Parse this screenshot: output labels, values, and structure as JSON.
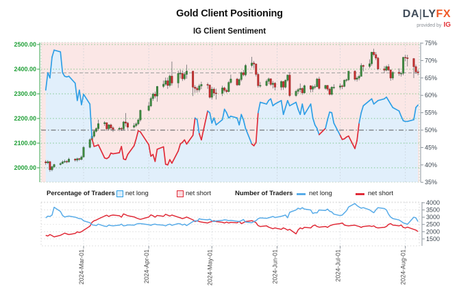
{
  "header": {
    "title": "Gold Client Positioning",
    "subtitle": "IG Client Sentiment",
    "logo": {
      "brand_a": "DA",
      "brand_bar": "|",
      "brand_b": "LY",
      "brand_fx": "FX",
      "provided_by": "provided by",
      "provider": "IG"
    }
  },
  "legend": {
    "pct_title": "Percentage of Traders",
    "num_title": "Number of Traders",
    "pct_net_long_label": "net long",
    "pct_net_short_label": "net short",
    "num_net_long_label": "net long",
    "num_net_short_label": "net short"
  },
  "colors": {
    "long_line": "#2e9fe6",
    "short_line": "#e02b38",
    "long_fill": "#e1effb",
    "short_fill": "#fbe7e6",
    "candle_up": "#3d8b40",
    "candle_down": "#c62f2f",
    "price_axis_green": "#21a038",
    "grid_green": "#5bbb6a",
    "pct_axis_gray": "#3c4650",
    "midline_gray": "#555555",
    "last_price_gray": "#9a9a9a",
    "num_long": "#57abe8",
    "num_short": "#e02b38"
  },
  "chart_data": {
    "type": "mixed",
    "panels": [
      {
        "type": "candlestick+line",
        "title": "Gold price (candles, left axis) with IG client sentiment % net long (line, right axis)",
        "price_ticks": [
          "2500.00",
          "2400.00",
          "2300.00",
          "2200.00",
          "2100.00",
          "2000.00"
        ],
        "price_tick_values": [
          2500,
          2400,
          2300,
          2200,
          2100,
          2000
        ],
        "pct_ticks": [
          "75%",
          "70%",
          "65%",
          "60%",
          "55%",
          "50%",
          "45%",
          "40%",
          "35%"
        ],
        "pct_tick_values": [
          75,
          70,
          65,
          60,
          55,
          50,
          45,
          40,
          35
        ],
        "pct_midline": 50,
        "last_price_line": 2385,
        "grid": true,
        "legend_position": "below"
      },
      {
        "type": "line",
        "title": "Number of traders",
        "count_ticks": [
          "4000",
          "3500",
          "3000",
          "2500",
          "2000",
          "1500"
        ],
        "count_tick_values": [
          4000,
          3500,
          3000,
          2500,
          2000,
          1500
        ],
        "grid": true
      }
    ],
    "x_tick_labels": [
      "2024-Mar-01",
      "2024-Apr-01",
      "2024-May-01",
      "2024-Jun-01",
      "2024-Jul-01",
      "2024-Aug-01"
    ],
    "x_tick_dates": [
      "2024-03-01",
      "2024-04-01",
      "2024-05-01",
      "2024-06-01",
      "2024-07-01",
      "2024-08-01"
    ],
    "dates": [
      "2024-02-12",
      "2024-02-13",
      "2024-02-14",
      "2024-02-15",
      "2024-02-16",
      "2024-02-19",
      "2024-02-20",
      "2024-02-21",
      "2024-02-22",
      "2024-02-23",
      "2024-02-26",
      "2024-02-27",
      "2024-02-28",
      "2024-02-29",
      "2024-03-01",
      "2024-03-04",
      "2024-03-05",
      "2024-03-06",
      "2024-03-07",
      "2024-03-08",
      "2024-03-11",
      "2024-03-12",
      "2024-03-13",
      "2024-03-14",
      "2024-03-15",
      "2024-03-18",
      "2024-03-19",
      "2024-03-20",
      "2024-03-21",
      "2024-03-22",
      "2024-03-25",
      "2024-03-26",
      "2024-03-27",
      "2024-03-28",
      "2024-04-01",
      "2024-04-02",
      "2024-04-03",
      "2024-04-04",
      "2024-04-05",
      "2024-04-08",
      "2024-04-09",
      "2024-04-10",
      "2024-04-11",
      "2024-04-12",
      "2024-04-15",
      "2024-04-16",
      "2024-04-17",
      "2024-04-18",
      "2024-04-19",
      "2024-04-22",
      "2024-04-23",
      "2024-04-24",
      "2024-04-25",
      "2024-04-26",
      "2024-04-29",
      "2024-04-30",
      "2024-05-01",
      "2024-05-02",
      "2024-05-03",
      "2024-05-06",
      "2024-05-07",
      "2024-05-08",
      "2024-05-09",
      "2024-05-10",
      "2024-05-13",
      "2024-05-14",
      "2024-05-15",
      "2024-05-16",
      "2024-05-17",
      "2024-05-20",
      "2024-05-21",
      "2024-05-22",
      "2024-05-23",
      "2024-05-24",
      "2024-05-27",
      "2024-05-28",
      "2024-05-29",
      "2024-05-30",
      "2024-05-31",
      "2024-06-03",
      "2024-06-04",
      "2024-06-05",
      "2024-06-06",
      "2024-06-07",
      "2024-06-10",
      "2024-06-11",
      "2024-06-12",
      "2024-06-13",
      "2024-06-14",
      "2024-06-17",
      "2024-06-18",
      "2024-06-19",
      "2024-06-20",
      "2024-06-21",
      "2024-06-24",
      "2024-06-25",
      "2024-06-26",
      "2024-06-27",
      "2024-06-28",
      "2024-07-01",
      "2024-07-02",
      "2024-07-03",
      "2024-07-04",
      "2024-07-05",
      "2024-07-08",
      "2024-07-09",
      "2024-07-10",
      "2024-07-11",
      "2024-07-12",
      "2024-07-15",
      "2024-07-16",
      "2024-07-17",
      "2024-07-18",
      "2024-07-19",
      "2024-07-22",
      "2024-07-23",
      "2024-07-24",
      "2024-07-25",
      "2024-07-26",
      "2024-07-29",
      "2024-07-30",
      "2024-07-31",
      "2024-08-01",
      "2024-08-02",
      "2024-08-05",
      "2024-08-06",
      "2024-08-07"
    ],
    "candles_ohlc": [
      [
        2024,
        2031,
        2012,
        2020
      ],
      [
        2020,
        2031,
        2015,
        2025
      ],
      [
        2025,
        2027,
        1984,
        1992
      ],
      [
        1992,
        2008,
        1986,
        2004
      ],
      [
        2004,
        2017,
        2000,
        2013
      ],
      [
        2013,
        2022,
        2010,
        2017
      ],
      [
        2017,
        2030,
        2015,
        2024
      ],
      [
        2024,
        2033,
        2019,
        2026
      ],
      [
        2026,
        2031,
        2018,
        2024
      ],
      [
        2024,
        2041,
        2021,
        2035
      ],
      [
        2035,
        2039,
        2025,
        2031
      ],
      [
        2031,
        2041,
        2024,
        2037
      ],
      [
        2037,
        2040,
        2028,
        2034
      ],
      [
        2034,
        2050,
        2030,
        2044
      ],
      [
        2044,
        2088,
        2042,
        2083
      ],
      [
        2083,
        2119,
        2079,
        2114
      ],
      [
        2114,
        2141,
        2110,
        2128
      ],
      [
        2128,
        2152,
        2123,
        2148
      ],
      [
        2148,
        2164,
        2143,
        2159
      ],
      [
        2159,
        2195,
        2154,
        2179
      ],
      [
        2179,
        2189,
        2170,
        2183
      ],
      [
        2183,
        2184,
        2150,
        2158
      ],
      [
        2158,
        2177,
        2152,
        2174
      ],
      [
        2174,
        2179,
        2153,
        2162
      ],
      [
        2162,
        2168,
        2146,
        2156
      ],
      [
        2156,
        2166,
        2149,
        2160
      ],
      [
        2160,
        2165,
        2150,
        2158
      ],
      [
        2158,
        2190,
        2152,
        2186
      ],
      [
        2186,
        2222,
        2167,
        2181
      ],
      [
        2181,
        2186,
        2157,
        2165
      ],
      [
        2165,
        2181,
        2160,
        2171
      ],
      [
        2171,
        2184,
        2165,
        2178
      ],
      [
        2178,
        2200,
        2173,
        2194
      ],
      [
        2194,
        2236,
        2187,
        2233
      ],
      [
        2233,
        2266,
        2229,
        2251
      ],
      [
        2251,
        2288,
        2246,
        2281
      ],
      [
        2281,
        2305,
        2272,
        2299
      ],
      [
        2299,
        2309,
        2282,
        2291
      ],
      [
        2291,
        2332,
        2268,
        2330
      ],
      [
        2330,
        2354,
        2324,
        2339
      ],
      [
        2339,
        2366,
        2333,
        2353
      ],
      [
        2353,
        2366,
        2320,
        2334
      ],
      [
        2334,
        2378,
        2327,
        2372
      ],
      [
        2372,
        2431,
        2334,
        2344
      ],
      [
        2344,
        2394,
        2324,
        2383
      ],
      [
        2383,
        2398,
        2362,
        2383
      ],
      [
        2383,
        2395,
        2352,
        2361
      ],
      [
        2361,
        2386,
        2355,
        2379
      ],
      [
        2379,
        2418,
        2361,
        2392
      ],
      [
        2392,
        2393,
        2291,
        2327
      ],
      [
        2327,
        2335,
        2304,
        2322
      ],
      [
        2322,
        2329,
        2305,
        2316
      ],
      [
        2316,
        2340,
        2307,
        2332
      ],
      [
        2332,
        2349,
        2319,
        2338
      ],
      [
        2338,
        2345,
        2320,
        2335
      ],
      [
        2335,
        2339,
        2281,
        2286
      ],
      [
        2286,
        2328,
        2277,
        2319
      ],
      [
        2319,
        2326,
        2292,
        2303
      ],
      [
        2303,
        2321,
        2277,
        2302
      ],
      [
        2302,
        2333,
        2291,
        2324
      ],
      [
        2324,
        2329,
        2306,
        2314
      ],
      [
        2314,
        2321,
        2303,
        2309
      ],
      [
        2309,
        2352,
        2306,
        2346
      ],
      [
        2346,
        2378,
        2341,
        2360
      ],
      [
        2360,
        2365,
        2332,
        2336
      ],
      [
        2336,
        2363,
        2333,
        2358
      ],
      [
        2358,
        2390,
        2351,
        2386
      ],
      [
        2386,
        2397,
        2371,
        2377
      ],
      [
        2377,
        2421,
        2371,
        2415
      ],
      [
        2415,
        2450,
        2407,
        2425
      ],
      [
        2425,
        2433,
        2404,
        2421
      ],
      [
        2421,
        2423,
        2371,
        2379
      ],
      [
        2379,
        2383,
        2325,
        2333
      ],
      [
        2333,
        2348,
        2325,
        2334
      ],
      [
        2334,
        2358,
        2330,
        2351
      ],
      [
        2351,
        2366,
        2340,
        2361
      ],
      [
        2361,
        2363,
        2332,
        2338
      ],
      [
        2338,
        2352,
        2322,
        2343
      ],
      [
        2343,
        2348,
        2314,
        2327
      ],
      [
        2327,
        2354,
        2315,
        2350
      ],
      [
        2350,
        2352,
        2316,
        2327
      ],
      [
        2327,
        2359,
        2322,
        2355
      ],
      [
        2355,
        2378,
        2349,
        2376
      ],
      [
        2376,
        2388,
        2287,
        2293
      ],
      [
        2293,
        2316,
        2288,
        2310
      ],
      [
        2310,
        2323,
        2300,
        2317
      ],
      [
        2317,
        2342,
        2306,
        2322
      ],
      [
        2322,
        2326,
        2296,
        2304
      ],
      [
        2304,
        2337,
        2301,
        2333
      ],
      [
        2333,
        2334,
        2306,
        2319
      ],
      [
        2319,
        2335,
        2307,
        2329
      ],
      [
        2329,
        2338,
        2319,
        2329
      ],
      [
        2329,
        2365,
        2327,
        2360
      ],
      [
        2360,
        2369,
        2317,
        2322
      ],
      [
        2322,
        2336,
        2317,
        2334
      ],
      [
        2334,
        2336,
        2311,
        2319
      ],
      [
        2319,
        2325,
        2293,
        2298
      ],
      [
        2298,
        2331,
        2293,
        2327
      ],
      [
        2327,
        2339,
        2319,
        2327
      ],
      [
        2327,
        2342,
        2318,
        2332
      ],
      [
        2332,
        2338,
        2319,
        2330
      ],
      [
        2330,
        2359,
        2327,
        2355
      ],
      [
        2355,
        2362,
        2348,
        2357
      ],
      [
        2357,
        2393,
        2352,
        2392
      ],
      [
        2392,
        2395,
        2352,
        2359
      ],
      [
        2359,
        2371,
        2350,
        2364
      ],
      [
        2364,
        2378,
        2355,
        2371
      ],
      [
        2371,
        2424,
        2370,
        2415
      ],
      [
        2415,
        2418,
        2391,
        2411
      ],
      [
        2411,
        2440,
        2404,
        2422
      ],
      [
        2422,
        2470,
        2414,
        2469
      ],
      [
        2469,
        2483,
        2452,
        2459
      ],
      [
        2459,
        2469,
        2437,
        2445
      ],
      [
        2445,
        2450,
        2396,
        2401
      ],
      [
        2401,
        2412,
        2384,
        2396
      ],
      [
        2396,
        2416,
        2391,
        2410
      ],
      [
        2410,
        2420,
        2392,
        2397
      ],
      [
        2397,
        2399,
        2353,
        2364
      ],
      [
        2364,
        2392,
        2356,
        2387
      ],
      [
        2387,
        2403,
        2373,
        2383
      ],
      [
        2383,
        2390,
        2370,
        2383
      ],
      [
        2383,
        2450,
        2375,
        2448
      ],
      [
        2448,
        2458,
        2432,
        2446
      ],
      [
        2446,
        2458,
        2411,
        2443
      ],
      [
        2443,
        2445,
        2364,
        2410
      ],
      [
        2410,
        2418,
        2381,
        2389
      ],
      [
        2389,
        2397,
        2375,
        2385
      ]
    ],
    "pct_net_long": [
      61.5,
      66.5,
      65.0,
      71.0,
      73.0,
      72.5,
      66.5,
      65.5,
      65.3,
      65.5,
      63.5,
      58.5,
      61.5,
      57.3,
      60.3,
      57.5,
      47.5,
      45.3,
      45.5,
      45.8,
      42.0,
      41.8,
      42.2,
      43.4,
      43.2,
      43.5,
      45.3,
      41.7,
      41.5,
      43.0,
      45.5,
      47.5,
      49.8,
      49.5,
      45.8,
      42.5,
      43.0,
      41.0,
      44.5,
      45.2,
      40.2,
      40.0,
      41.5,
      40.5,
      44.0,
      46.0,
      46.5,
      47.2,
      46.0,
      48.5,
      53.5,
      53.0,
      49.0,
      47.2,
      55.5,
      55.0,
      52.0,
      53.5,
      51.5,
      53.0,
      56.0,
      55.0,
      53.5,
      54.0,
      53.5,
      51.5,
      54.5,
      53.0,
      50.5,
      46.0,
      45.5,
      46.5,
      55.0,
      58.0,
      57.5,
      58.5,
      59.0,
      57.0,
      57.5,
      58.5,
      54.5,
      56.5,
      58.5,
      57.0,
      58.0,
      56.0,
      54.5,
      57.5,
      54.5,
      57.5,
      53.5,
      51.5,
      50.5,
      48.7,
      50.5,
      53.0,
      55.2,
      55.0,
      52.0,
      48.5,
      47.3,
      47.5,
      48.0,
      48.3,
      44.7,
      47.0,
      52.0,
      55.0,
      57.0,
      58.5,
      59.0,
      57.5,
      58.0,
      58.5,
      59.0,
      59.5,
      58.5,
      57.5,
      56.5,
      55.5,
      54.0,
      52.7,
      52.5,
      52.5,
      53.0,
      56.5,
      57.2
    ],
    "traders_net_long": [
      2950,
      3075,
      3050,
      3150,
      3690,
      3400,
      3120,
      3010,
      3050,
      3080,
      3000,
      2950,
      2900,
      2890,
      2750,
      2620,
      2480,
      2450,
      2420,
      2520,
      2380,
      2360,
      2460,
      2420,
      2400,
      2450,
      2520,
      2400,
      2420,
      2470,
      2450,
      2520,
      2560,
      2560,
      2480,
      2440,
      2500,
      2520,
      2480,
      2450,
      2400,
      2480,
      2520,
      2440,
      2560,
      2540,
      2460,
      2520,
      2420,
      2700,
      2760,
      2720,
      2900,
      2850,
      2820,
      2860,
      2750,
      2700,
      2740,
      2780,
      2820,
      2800,
      2760,
      2780,
      2720,
      2700,
      2760,
      2840,
      2660,
      2620,
      2700,
      2760,
      2900,
      2950,
      2920,
      2960,
      3000,
      3050,
      2980,
      3060,
      3100,
      3150,
      2960,
      3340,
      3500,
      3620,
      3560,
      3660,
      3560,
      3500,
      3260,
      3310,
      3300,
      3500,
      3460,
      3560,
      3410,
      3360,
      3210,
      3110,
      3150,
      3300,
      3450,
      3700,
      3950,
      3800,
      3700,
      3620,
      3660,
      3510,
      3400,
      3310,
      3510,
      3660,
      3600,
      3500,
      3210,
      3010,
      2910,
      2810,
      2710,
      2610,
      2560,
      2510,
      3000,
      2950,
      2700
    ],
    "traders_net_short": [
      1750,
      1700,
      1800,
      1725,
      1640,
      1750,
      1820,
      1900,
      1850,
      1800,
      1875,
      1990,
      1940,
      2000,
      2100,
      2380,
      2650,
      2750,
      2800,
      2880,
      3080,
      3140,
      3050,
      3120,
      3150,
      3100,
      3000,
      3230,
      3170,
      3100,
      3020,
      2950,
      2900,
      2850,
      3010,
      3160,
      3100,
      3000,
      3120,
      3060,
      3200,
      3140,
      3080,
      3150,
      3000,
      2960,
      2900,
      2950,
      3010,
      2820,
      2700,
      2760,
      2700,
      2660,
      2600,
      2660,
      2700,
      2760,
      2700,
      2650,
      2600,
      2660,
      2600,
      2650,
      2610,
      2710,
      2560,
      2620,
      2700,
      2760,
      2700,
      2620,
      2420,
      2360,
      2400,
      2310,
      2260,
      2210,
      2260,
      2160,
      2260,
      2200,
      2110,
      2160,
      1850,
      2120,
      2260,
      2200,
      2300,
      2260,
      2400,
      2460,
      2360,
      2310,
      2360,
      2300,
      2400,
      2460,
      2500,
      2560,
      2600,
      2460,
      2420,
      2400,
      2450,
      2400,
      2360,
      2300,
      2360,
      2400,
      2360,
      2400,
      2300,
      2260,
      2300,
      2360,
      2500,
      2560,
      2460,
      2400,
      2460,
      2300,
      2260,
      2310,
      2160,
      2110,
      2010
    ]
  }
}
